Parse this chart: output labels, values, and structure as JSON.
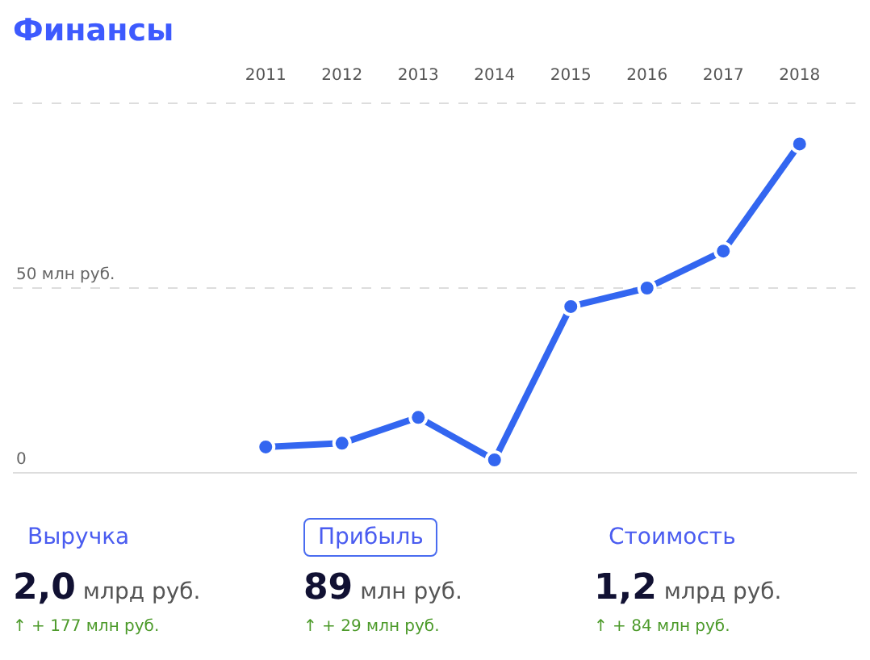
{
  "chart_data": {
    "type": "line",
    "title": "Финансы",
    "categories": [
      "2011",
      "2012",
      "2013",
      "2014",
      "2015",
      "2016",
      "2017",
      "2018"
    ],
    "series": [
      {
        "color": "#3366f0",
        "values": [
          7,
          8,
          15,
          3.5,
          45,
          50,
          60,
          89
        ]
      }
    ],
    "ylim": [
      0,
      100
    ],
    "yticks": [
      0,
      {
        "value": 50,
        "label": "50 млн руб."
      },
      {
        "value": 100,
        "label": null
      }
    ],
    "grid": "y",
    "legend": false,
    "marker": "circle",
    "line_style": "solid",
    "annotations": [
      "Выручка",
      "2,0 млрд руб.",
      "↑ + 177 млн руб.",
      "Прибыль",
      "89 млн руб.",
      "↑ + 29 млн руб.",
      "Стоимость",
      "1,2 млрд руб.",
      "↑ + 84 млн руб."
    ]
  }
}
